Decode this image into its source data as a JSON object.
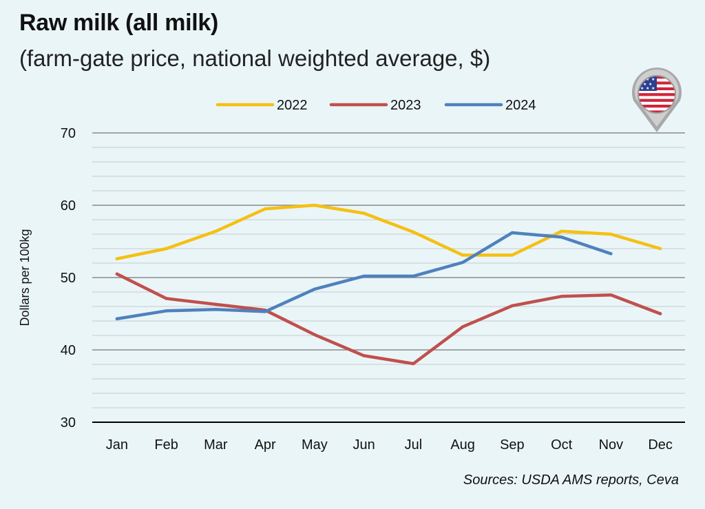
{
  "header": {
    "title": "Raw milk (all milk)",
    "subtitle": "(farm-gate price, national weighted average, $)"
  },
  "footer": {
    "source": "Sources: USDA AMS reports, Ceva"
  },
  "badge": {
    "icon": "us-flag-map-pin-icon"
  },
  "chart_data": {
    "type": "line",
    "categories": [
      "Jan",
      "Feb",
      "Mar",
      "Apr",
      "May",
      "Jun",
      "Jul",
      "Aug",
      "Sep",
      "Oct",
      "Nov",
      "Dec"
    ],
    "ylabel": "Dollars per 100kg",
    "xlabel": "",
    "ylim": [
      30,
      70
    ],
    "yticks": [
      30,
      40,
      50,
      60,
      70
    ],
    "grid": true,
    "legend_position": "top",
    "series": [
      {
        "name": "2022",
        "color": "#f5c012",
        "values": [
          52.6,
          54.0,
          56.4,
          59.5,
          60.0,
          58.9,
          56.3,
          53.1,
          53.1,
          56.4,
          56.0,
          54.0
        ]
      },
      {
        "name": "2023",
        "color": "#c0504d",
        "values": [
          50.5,
          47.1,
          46.3,
          45.5,
          42.1,
          39.2,
          38.1,
          43.2,
          46.1,
          47.4,
          47.6,
          45.0
        ]
      },
      {
        "name": "2024",
        "color": "#4f81bd",
        "values": [
          44.3,
          45.4,
          45.6,
          45.3,
          48.4,
          50.2,
          50.2,
          52.1,
          56.2,
          55.6,
          53.3,
          null
        ]
      }
    ]
  }
}
